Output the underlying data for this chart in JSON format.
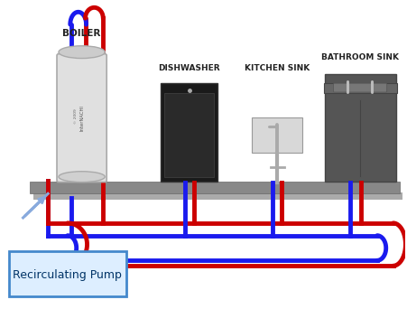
{
  "bg_color": "#ffffff",
  "labels": {
    "boiler": "BOILER",
    "dishwasher": "DISHWASHER",
    "kitchen_sink": "KITCHEN SINK",
    "bathroom_sink": "BATHROOM SINK",
    "pump": "Recirculating Pump"
  },
  "colors": {
    "hot": "#cc0000",
    "cold_return": "#1a1aee",
    "cold_supply": "#88aadd",
    "boiler_body": "#e0e0e0",
    "boiler_shade": "#cccccc",
    "dishwasher_body": "#1a1a1a",
    "bathroom_body": "#555555",
    "floor_color": "#888888",
    "floor_shadow": "#aaaaaa",
    "pump_box_fill": "#ddeeff",
    "pump_box_edge": "#4488cc",
    "label_color": "#222222",
    "pipe_hot": "#cc0000",
    "pipe_cold": "#1a1aee"
  },
  "font_sizes": {
    "appliance_label": 6.5,
    "pump_label": 9
  }
}
